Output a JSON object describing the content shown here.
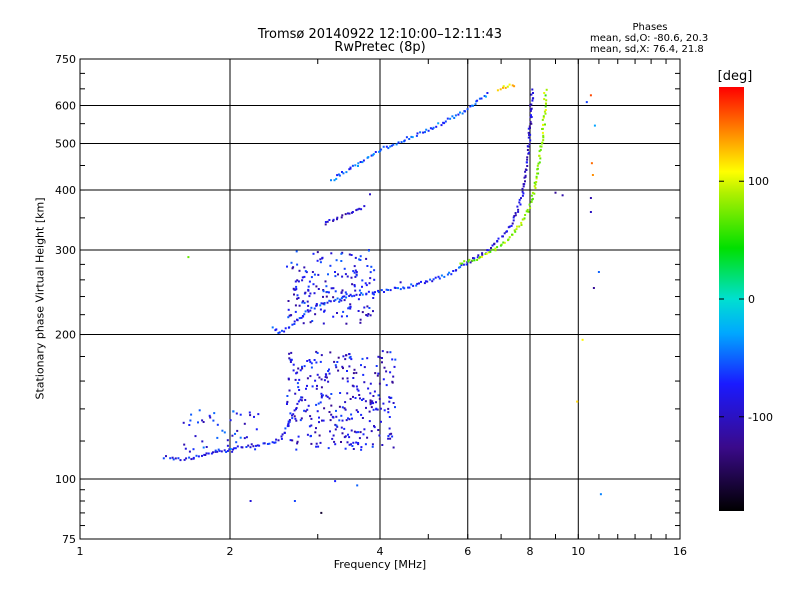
{
  "chart_data": {
    "type": "scatter",
    "title": "Tromsø 20140922 12:10:00–12:11:43",
    "subtitle": "RwPretec (8p)",
    "xlabel": "Frequency [MHz]",
    "ylabel": "Stationary phase Virtual Height [km]",
    "x_scale": "log",
    "y_scale": "log",
    "xlim": [
      1,
      16
    ],
    "ylim": [
      75,
      750
    ],
    "x_ticks": [
      "1",
      "2",
      "4",
      "6",
      "8",
      "10",
      "16"
    ],
    "y_ticks": [
      "75",
      "100",
      "200",
      "300",
      "400",
      "500",
      "600",
      "750"
    ],
    "grid": true,
    "phase_stats": {
      "title": "Phases",
      "line_o": "mean, sd,O: -80.6, 20.3",
      "line_x": "mean, sd,X: 76.4, 21.8"
    },
    "colorbar": {
      "label": "[deg]",
      "range": [
        -180,
        180
      ],
      "tick_labels": [
        "100",
        "0",
        "-100"
      ],
      "tick_values": [
        100,
        0,
        -100
      ]
    },
    "traces": [
      {
        "x": [
          1.48,
          1.58,
          1.7,
          1.85,
          2.0,
          2.15,
          2.3,
          2.45,
          2.55,
          2.6,
          2.7,
          2.8
        ],
        "y": [
          111,
          110,
          111,
          113,
          115,
          117,
          118,
          119,
          122,
          128,
          140,
          150
        ],
        "phase": -80
      },
      {
        "x": [
          2.45,
          2.5,
          2.58,
          2.7,
          2.85,
          3.0,
          3.2,
          3.45,
          3.7,
          4.0,
          4.4,
          4.8,
          5.2,
          5.6,
          6.0
        ],
        "y": [
          207,
          202,
          204,
          212,
          222,
          230,
          236,
          240,
          243,
          246,
          250,
          255,
          261,
          270,
          282
        ],
        "phase": -65
      },
      {
        "x": [
          6.0,
          6.5,
          7.0,
          7.4,
          7.7,
          7.85,
          7.95,
          8.0,
          8.05,
          8.1
        ],
        "y": [
          283,
          297,
          318,
          345,
          385,
          430,
          480,
          540,
          600,
          650
        ],
        "phase": -95
      },
      {
        "x": [
          5.8,
          6.3,
          6.8,
          7.3,
          7.8,
          8.1,
          8.3,
          8.45,
          8.55,
          8.6
        ],
        "y": [
          282,
          288,
          300,
          318,
          348,
          385,
          440,
          500,
          570,
          650
        ],
        "phase": 80
      },
      {
        "x": [
          3.2,
          3.6,
          4.0,
          4.5,
          5.0,
          5.5,
          6.0,
          6.4,
          6.6
        ],
        "y": [
          420,
          452,
          485,
          510,
          535,
          560,
          590,
          620,
          640
        ],
        "phase": -55
      },
      {
        "x": [
          3.1,
          3.3,
          3.5,
          3.75
        ],
        "y": [
          340,
          350,
          358,
          370
        ],
        "phase": -95
      },
      {
        "x": [
          6.9,
          7.1,
          7.3,
          7.5
        ],
        "y": [
          648,
          655,
          660,
          655
        ],
        "phase": 120
      }
    ],
    "clusters": [
      {
        "x_range": [
          2.6,
          4.3
        ],
        "y_range": [
          115,
          185
        ],
        "count": 300,
        "phase": -90
      },
      {
        "x_range": [
          2.6,
          3.9
        ],
        "y_range": [
          210,
          300
        ],
        "count": 170,
        "phase": -85
      },
      {
        "x_range": [
          1.6,
          2.3
        ],
        "y_range": [
          112,
          140
        ],
        "count": 50,
        "phase": -75
      }
    ],
    "outliers": [
      {
        "x": 1.65,
        "y": 290,
        "phase": 70
      },
      {
        "x": 2.2,
        "y": 90,
        "phase": -90
      },
      {
        "x": 2.7,
        "y": 90,
        "phase": -60
      },
      {
        "x": 3.05,
        "y": 85,
        "phase": -160
      },
      {
        "x": 3.25,
        "y": 99,
        "phase": -70
      },
      {
        "x": 3.6,
        "y": 97,
        "phase": -50
      },
      {
        "x": 3.82,
        "y": 392,
        "phase": -100
      },
      {
        "x": 4.4,
        "y": 257,
        "phase": -100
      },
      {
        "x": 9.3,
        "y": 390,
        "phase": -110
      },
      {
        "x": 9.95,
        "y": 145,
        "phase": 120
      },
      {
        "x": 10.2,
        "y": 195,
        "phase": 110
      },
      {
        "x": 10.4,
        "y": 610,
        "phase": -60
      },
      {
        "x": 10.6,
        "y": 630,
        "phase": 160
      },
      {
        "x": 10.65,
        "y": 455,
        "phase": 150
      },
      {
        "x": 10.7,
        "y": 430,
        "phase": 140
      },
      {
        "x": 10.6,
        "y": 360,
        "phase": -100
      },
      {
        "x": 10.75,
        "y": 250,
        "phase": -120
      },
      {
        "x": 10.8,
        "y": 545,
        "phase": -30
      },
      {
        "x": 11.0,
        "y": 270,
        "phase": -50
      },
      {
        "x": 11.1,
        "y": 93,
        "phase": -40
      },
      {
        "x": 9.0,
        "y": 395,
        "phase": -120
      },
      {
        "x": 10.6,
        "y": 385,
        "phase": -110
      }
    ]
  }
}
